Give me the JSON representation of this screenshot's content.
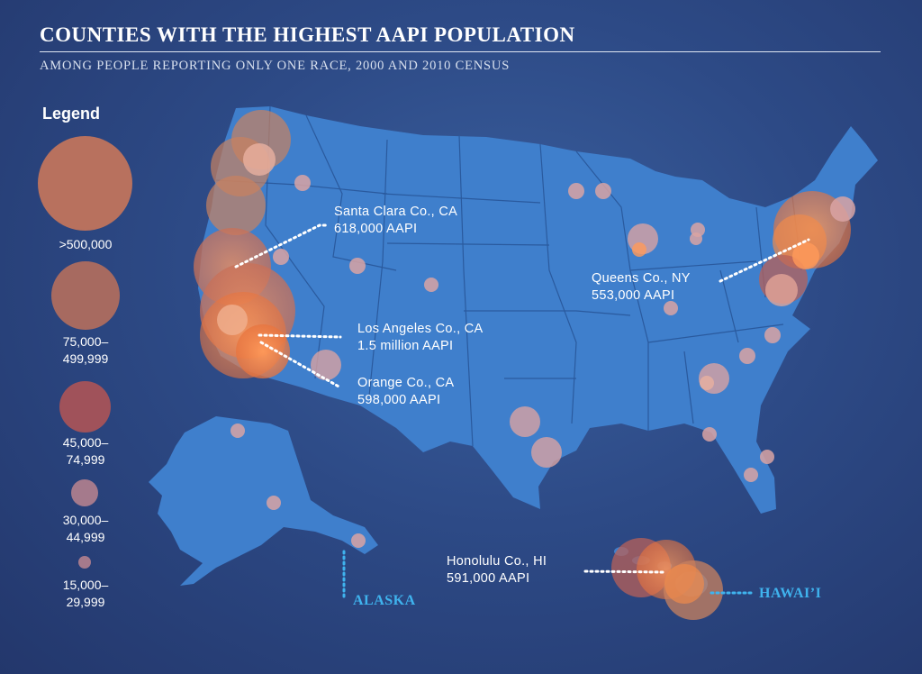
{
  "header": {
    "title": "COUNTIES WITH THE HIGHEST AAPI POPULATION",
    "subtitle": "AMONG PEOPLE REPORTING ONLY ONE RACE, 2000 AND 2010 CENSUS"
  },
  "legend": {
    "title": "Legend",
    "items": [
      {
        "label": ">500,000"
      },
      {
        "label": "75,000–\n499,999"
      },
      {
        "label": "45,000–\n74,999"
      },
      {
        "label": "30,000–\n44,999"
      },
      {
        "label": "15,000–\n29,999"
      }
    ]
  },
  "callouts": [
    {
      "line1": "Santa Clara Co., CA",
      "line2": "618,000 AAPI"
    },
    {
      "line1": "Queens Co., NY",
      "line2": "553,000 AAPI"
    },
    {
      "line1": "Los Angeles Co., CA",
      "line2": "1.5 million AAPI"
    },
    {
      "line1": "Orange Co., CA",
      "line2": "598,000 AAPI"
    },
    {
      "line1": "Honolulu Co., HI",
      "line2": "591,000 AAPI"
    }
  ],
  "state_labels": {
    "alaska": "ALASKA",
    "hawaii": "HAWAI’I"
  },
  "colors": {
    "background": "#2d4a86",
    "land": "#3f7fcc",
    "state_borders": "#2a5a9e",
    "bubble_large": "#c9815f",
    "bubble_orange": "#f08a4b",
    "bubble_red": "#b86058",
    "bubble_pink": "#d9a3a3",
    "callout_line": "#ffffff",
    "state_label": "#3fb3ee"
  }
}
